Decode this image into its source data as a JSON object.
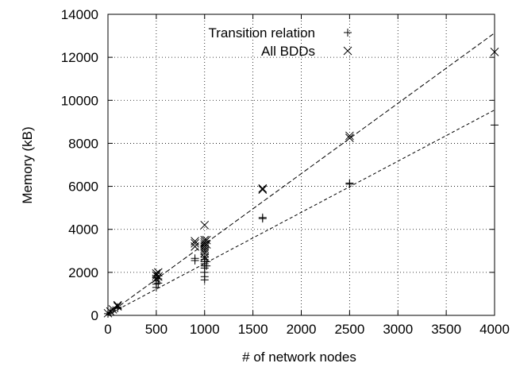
{
  "chart_data": {
    "type": "scatter",
    "xlabel": "# of network nodes",
    "ylabel": "Memory (kB)",
    "xlim": [
      0,
      4000
    ],
    "ylim": [
      0,
      14000
    ],
    "xticks": [
      0,
      500,
      1000,
      1500,
      2000,
      2500,
      3000,
      3500,
      4000
    ],
    "yticks": [
      0,
      2000,
      4000,
      6000,
      8000,
      10000,
      12000,
      14000
    ],
    "grid": true,
    "grid_style": "dotted",
    "legend_position": "top-right",
    "series": [
      {
        "name": "Transition relation",
        "marker": "plus",
        "points": [
          [
            0,
            80
          ],
          [
            25,
            150
          ],
          [
            50,
            230
          ],
          [
            100,
            330
          ],
          [
            100,
            380
          ],
          [
            500,
            1300
          ],
          [
            500,
            1450
          ],
          [
            500,
            1600
          ],
          [
            500,
            1750
          ],
          [
            520,
            1500
          ],
          [
            520,
            1700
          ],
          [
            900,
            2550
          ],
          [
            900,
            2650
          ],
          [
            1000,
            1650
          ],
          [
            1000,
            1800
          ],
          [
            1000,
            2000
          ],
          [
            1000,
            2200
          ],
          [
            1000,
            2300
          ],
          [
            1000,
            2400
          ],
          [
            1000,
            2500
          ],
          [
            1000,
            2600
          ],
          [
            1000,
            2700
          ],
          [
            1020,
            2300
          ],
          [
            1020,
            2500
          ],
          [
            1600,
            4500
          ],
          [
            1600,
            4550
          ],
          [
            2500,
            6100
          ],
          [
            2500,
            6150
          ],
          [
            4000,
            8850
          ]
        ]
      },
      {
        "name": "All BDDs",
        "marker": "cross",
        "points": [
          [
            0,
            100
          ],
          [
            25,
            180
          ],
          [
            50,
            280
          ],
          [
            100,
            420
          ],
          [
            100,
            470
          ],
          [
            500,
            1700
          ],
          [
            500,
            1850
          ],
          [
            500,
            1950
          ],
          [
            520,
            1800
          ],
          [
            520,
            2000
          ],
          [
            900,
            3200
          ],
          [
            900,
            3350
          ],
          [
            900,
            3450
          ],
          [
            1000,
            2700
          ],
          [
            1000,
            2900
          ],
          [
            1000,
            3000
          ],
          [
            1000,
            3100
          ],
          [
            1000,
            3200
          ],
          [
            1000,
            3300
          ],
          [
            1000,
            3400
          ],
          [
            1000,
            3500
          ],
          [
            1000,
            4200
          ],
          [
            1020,
            3300
          ],
          [
            1020,
            3500
          ],
          [
            1600,
            5850
          ],
          [
            1600,
            5900
          ],
          [
            2500,
            8250
          ],
          [
            2500,
            8350
          ],
          [
            4000,
            12250
          ]
        ]
      }
    ],
    "fit_lines": [
      {
        "series": "All BDDs",
        "style": "dashed",
        "slope": 3.27,
        "intercept": 50
      },
      {
        "series": "Transition relation",
        "style": "dotted-dashed",
        "slope": 2.38,
        "intercept": 30
      }
    ],
    "colors": {
      "axis": "#000000",
      "grid": "#000000",
      "marks": "#000000"
    }
  }
}
